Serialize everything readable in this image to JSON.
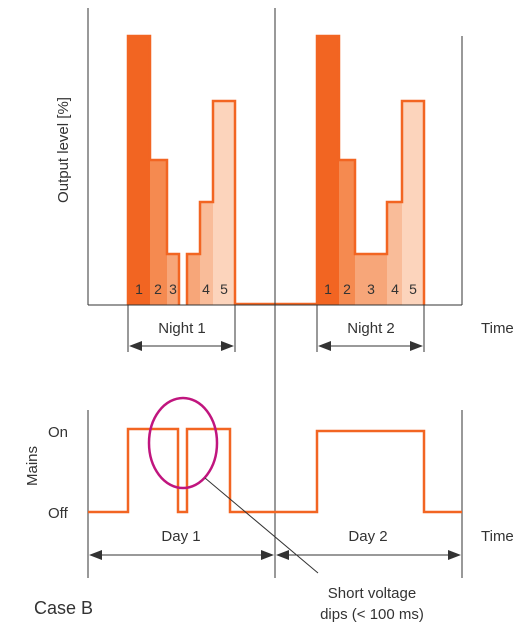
{
  "colors": {
    "level_1": "#f26522",
    "level_2": "#f58a50",
    "level_3": "#f7a679",
    "level_4": "#f9bc99",
    "level_5": "#fcd4bc",
    "outline": "#f26522",
    "highlight": "#c0157e",
    "axis": "#333333",
    "text": "#333333"
  },
  "top_chart": {
    "y_axis_label": "Output level [%]",
    "x_axis_label": "Time",
    "step_labels_night_1": [
      "1",
      "2",
      "3",
      "4",
      "5"
    ],
    "step_labels_night_2": [
      "1",
      "2",
      "3",
      "4",
      "5"
    ],
    "night_1_label": "Night 1",
    "night_2_label": "Night 2"
  },
  "bottom_chart": {
    "y_axis_label": "Mains",
    "on_label": "On",
    "off_label": "Off",
    "x_axis_label": "Time",
    "day_1_label": "Day 1",
    "day_2_label": "Day 2",
    "annotation": {
      "line1": "Short voltage",
      "line2": "dips (< 100 ms)"
    }
  },
  "case_label": "Case B"
}
